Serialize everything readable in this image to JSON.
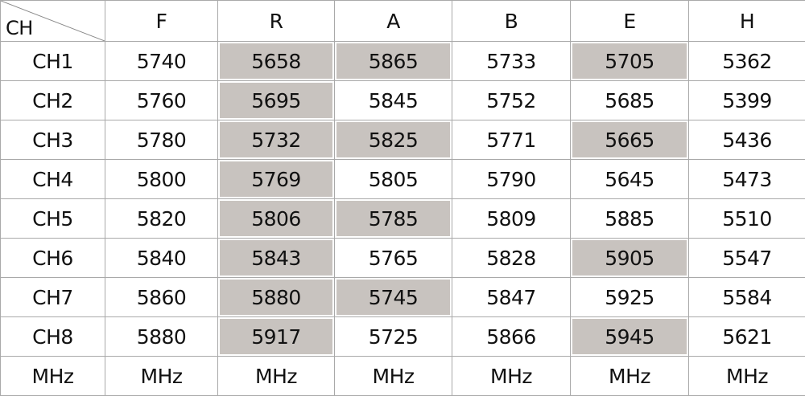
{
  "corner_label": "CH",
  "columns": [
    "F",
    "R",
    "A",
    "B",
    "E",
    "H"
  ],
  "rows": [
    {
      "label": "CH1",
      "values": [
        "5740",
        "5658",
        "5865",
        "5733",
        "5705",
        "5362"
      ],
      "highlighted": [
        false,
        true,
        true,
        false,
        true,
        false
      ]
    },
    {
      "label": "CH2",
      "values": [
        "5760",
        "5695",
        "5845",
        "5752",
        "5685",
        "5399"
      ],
      "highlighted": [
        false,
        true,
        false,
        false,
        false,
        false
      ]
    },
    {
      "label": "CH3",
      "values": [
        "5780",
        "5732",
        "5825",
        "5771",
        "5665",
        "5436"
      ],
      "highlighted": [
        false,
        true,
        true,
        false,
        true,
        false
      ]
    },
    {
      "label": "CH4",
      "values": [
        "5800",
        "5769",
        "5805",
        "5790",
        "5645",
        "5473"
      ],
      "highlighted": [
        false,
        true,
        false,
        false,
        false,
        false
      ]
    },
    {
      "label": "CH5",
      "values": [
        "5820",
        "5806",
        "5785",
        "5809",
        "5885",
        "5510"
      ],
      "highlighted": [
        false,
        true,
        true,
        false,
        false,
        false
      ]
    },
    {
      "label": "CH6",
      "values": [
        "5840",
        "5843",
        "5765",
        "5828",
        "5905",
        "5547"
      ],
      "highlighted": [
        false,
        true,
        false,
        false,
        true,
        false
      ]
    },
    {
      "label": "CH7",
      "values": [
        "5860",
        "5880",
        "5745",
        "5847",
        "5925",
        "5584"
      ],
      "highlighted": [
        false,
        true,
        true,
        false,
        false,
        false
      ]
    },
    {
      "label": "CH8",
      "values": [
        "5880",
        "5917",
        "5725",
        "5866",
        "5945",
        "5621"
      ],
      "highlighted": [
        false,
        true,
        false,
        false,
        true,
        false
      ]
    }
  ],
  "unit_row": [
    "MHz",
    "MHz",
    "MHz",
    "MHz",
    "MHz",
    "MHz",
    "MHz"
  ],
  "colors": {
    "highlight": "#c8c3bf",
    "grid": "#a9a9a9"
  }
}
